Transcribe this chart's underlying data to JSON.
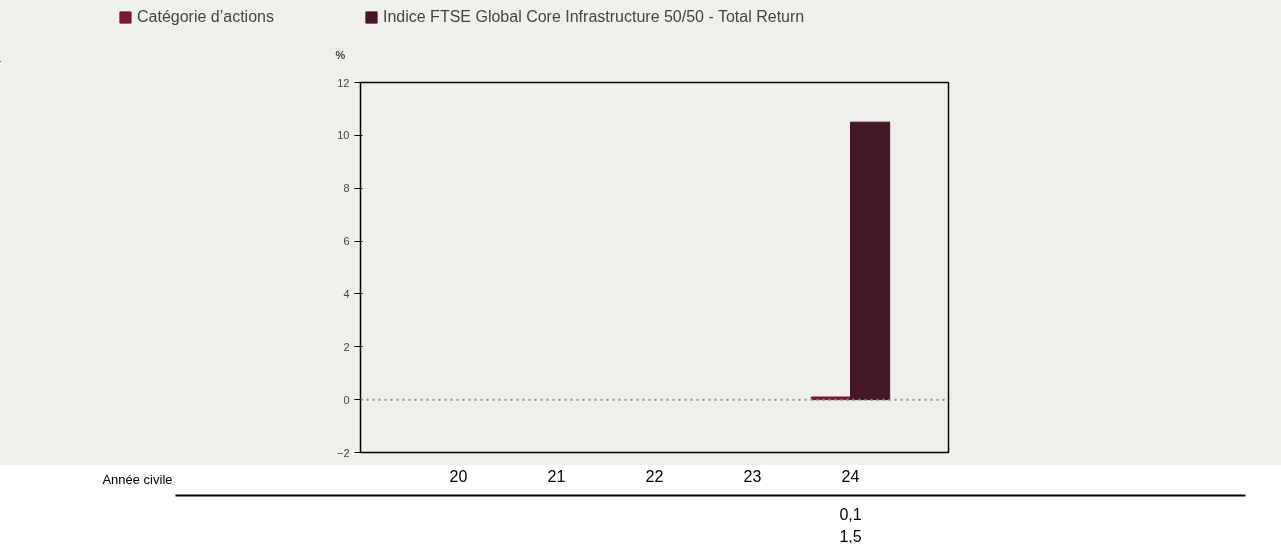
{
  "chart_data": {
    "type": "bar",
    "ylabel": "%",
    "categories": [
      "20",
      "21",
      "22",
      "23",
      "24"
    ],
    "series": [
      {
        "name": "Catégorie d’actions",
        "color": "#7b1734",
        "values": [
          null,
          null,
          null,
          null,
          0.1
        ]
      },
      {
        "name": "Indice FTSE Global Core Infrastructure 50/50 - Total Return",
        "color": "#431628",
        "values": [
          null,
          null,
          null,
          null,
          10.5
        ]
      }
    ],
    "ylim": [
      -2,
      12
    ],
    "yticks": [
      -2,
      0,
      2,
      4,
      6,
      8,
      10,
      12
    ],
    "ref_lines": [
      {
        "axis": "y",
        "value": 0,
        "line_style": "dotted",
        "color": "#888888"
      }
    ],
    "annotations": [
      "Année civile",
      "0,1",
      "1,5"
    ],
    "tick_labels": "y",
    "grid": false,
    "legend": "top"
  }
}
